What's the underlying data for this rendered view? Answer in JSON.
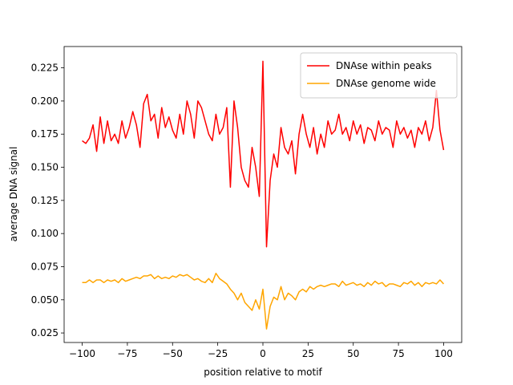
{
  "chart_data": {
    "type": "line",
    "xlabel": "position relative to motif",
    "ylabel": "average DNA signal",
    "x": [
      -100,
      -98,
      -96,
      -94,
      -92,
      -90,
      -88,
      -86,
      -84,
      -82,
      -80,
      -78,
      -76,
      -74,
      -72,
      -70,
      -68,
      -66,
      -64,
      -62,
      -60,
      -58,
      -56,
      -54,
      -52,
      -50,
      -48,
      -46,
      -44,
      -42,
      -40,
      -38,
      -36,
      -34,
      -32,
      -30,
      -28,
      -26,
      -24,
      -22,
      -20,
      -18,
      -16,
      -14,
      -12,
      -10,
      -8,
      -6,
      -4,
      -2,
      0,
      2,
      4,
      6,
      8,
      10,
      12,
      14,
      16,
      18,
      20,
      22,
      24,
      26,
      28,
      30,
      32,
      34,
      36,
      38,
      40,
      42,
      44,
      46,
      48,
      50,
      52,
      54,
      56,
      58,
      60,
      62,
      64,
      66,
      68,
      70,
      72,
      74,
      76,
      78,
      80,
      82,
      84,
      86,
      88,
      90,
      92,
      94,
      96,
      98,
      100
    ],
    "series": [
      {
        "name": "DNAse within peaks",
        "color": "#ff0000",
        "values": [
          0.17,
          0.168,
          0.172,
          0.182,
          0.162,
          0.188,
          0.168,
          0.185,
          0.17,
          0.175,
          0.168,
          0.185,
          0.172,
          0.18,
          0.192,
          0.182,
          0.165,
          0.198,
          0.205,
          0.185,
          0.19,
          0.172,
          0.195,
          0.18,
          0.188,
          0.178,
          0.172,
          0.19,
          0.175,
          0.2,
          0.19,
          0.172,
          0.2,
          0.195,
          0.185,
          0.175,
          0.17,
          0.19,
          0.175,
          0.18,
          0.195,
          0.135,
          0.2,
          0.18,
          0.15,
          0.14,
          0.135,
          0.165,
          0.15,
          0.128,
          0.23,
          0.09,
          0.14,
          0.16,
          0.15,
          0.18,
          0.165,
          0.16,
          0.17,
          0.145,
          0.175,
          0.19,
          0.175,
          0.165,
          0.18,
          0.16,
          0.175,
          0.165,
          0.185,
          0.175,
          0.178,
          0.19,
          0.175,
          0.18,
          0.17,
          0.185,
          0.175,
          0.182,
          0.168,
          0.18,
          0.178,
          0.17,
          0.185,
          0.175,
          0.18,
          0.178,
          0.165,
          0.185,
          0.175,
          0.18,
          0.172,
          0.178,
          0.165,
          0.18,
          0.175,
          0.185,
          0.17,
          0.18,
          0.208,
          0.178,
          0.163
        ]
      },
      {
        "name": "DNAse genome wide",
        "color": "#ffa500",
        "values": [
          0.063,
          0.063,
          0.065,
          0.063,
          0.065,
          0.065,
          0.063,
          0.065,
          0.064,
          0.065,
          0.063,
          0.066,
          0.064,
          0.065,
          0.066,
          0.067,
          0.066,
          0.068,
          0.068,
          0.069,
          0.066,
          0.068,
          0.066,
          0.067,
          0.066,
          0.068,
          0.067,
          0.069,
          0.068,
          0.069,
          0.067,
          0.065,
          0.066,
          0.064,
          0.063,
          0.066,
          0.063,
          0.07,
          0.066,
          0.064,
          0.062,
          0.058,
          0.055,
          0.05,
          0.055,
          0.048,
          0.045,
          0.042,
          0.05,
          0.043,
          0.058,
          0.028,
          0.045,
          0.052,
          0.05,
          0.06,
          0.05,
          0.055,
          0.053,
          0.05,
          0.056,
          0.058,
          0.056,
          0.06,
          0.058,
          0.06,
          0.061,
          0.06,
          0.061,
          0.062,
          0.062,
          0.06,
          0.064,
          0.061,
          0.062,
          0.063,
          0.061,
          0.062,
          0.06,
          0.063,
          0.061,
          0.064,
          0.062,
          0.063,
          0.06,
          0.062,
          0.062,
          0.061,
          0.06,
          0.063,
          0.062,
          0.064,
          0.061,
          0.063,
          0.06,
          0.063,
          0.062,
          0.063,
          0.062,
          0.065,
          0.062
        ]
      }
    ],
    "xlim": [
      -110,
      110
    ],
    "xticks": [
      {
        "value": -100,
        "label": "−100"
      },
      {
        "value": -75,
        "label": "−75"
      },
      {
        "value": -50,
        "label": "−50"
      },
      {
        "value": -25,
        "label": "−25"
      },
      0,
      25,
      50,
      75,
      100
    ],
    "ylim": [
      0.0178,
      0.2411
    ],
    "yticks": [
      0.025,
      {
        "value": 0.05,
        "label": "0.050"
      },
      0.075,
      {
        "value": 0.1,
        "label": "0.100"
      },
      0.125,
      {
        "value": 0.15,
        "label": "0.150"
      },
      0.175,
      {
        "value": 0.2,
        "label": "0.200"
      },
      0.225
    ],
    "legend": "upper right"
  }
}
